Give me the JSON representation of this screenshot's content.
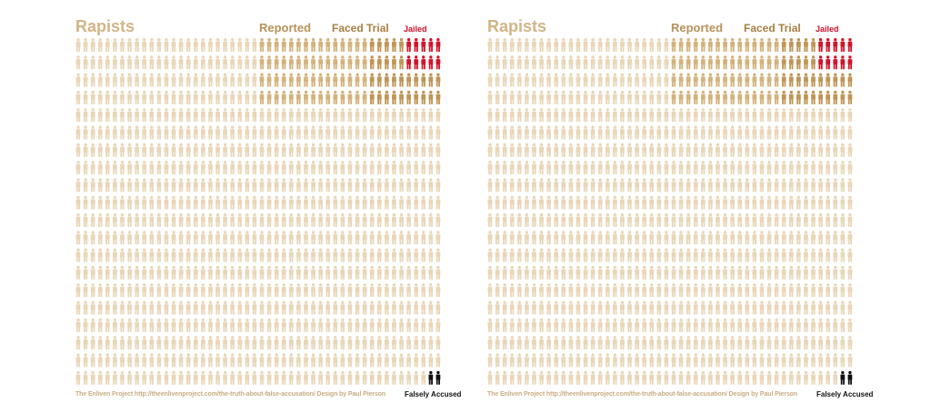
{
  "chart_data": [
    {
      "type": "pictogram",
      "title": "Rapists",
      "grid": {
        "rows": 20,
        "cols": 50
      },
      "categories": [
        {
          "name": "Rapists",
          "color": "#e9d6b8",
          "count": 1000
        },
        {
          "name": "Reported",
          "color": "#d4b27c",
          "count": 100
        },
        {
          "name": "Faced Trial",
          "color": "#bf9556",
          "count": 40
        },
        {
          "name": "Jailed",
          "color": "#d0152b",
          "count": 10
        },
        {
          "name": "Falsely Accused",
          "color": "#111111",
          "count": 2
        }
      ],
      "footer": "The Enliven Project http://theenlivenproject.com/the-truth-about-false-accusation/ Design by Paul Pierson"
    },
    {
      "type": "pictogram",
      "title": "Rapists",
      "grid": {
        "rows": 20,
        "cols": 50
      },
      "categories": [
        {
          "name": "Rapists",
          "color": "#e9d6b8",
          "count": 1000
        },
        {
          "name": "Reported",
          "color": "#d4b27c",
          "count": 100
        },
        {
          "name": "Faced Trial",
          "color": "#bf9556",
          "count": 40
        },
        {
          "name": "Jailed",
          "color": "#d0152b",
          "count": 10
        },
        {
          "name": "Falsely Accused",
          "color": "#111111",
          "count": 2
        }
      ],
      "footer": "The Enliven Project http://theenlivenproject.com/the-truth-about-false-accusation/ Design by Paul Pierson"
    }
  ]
}
